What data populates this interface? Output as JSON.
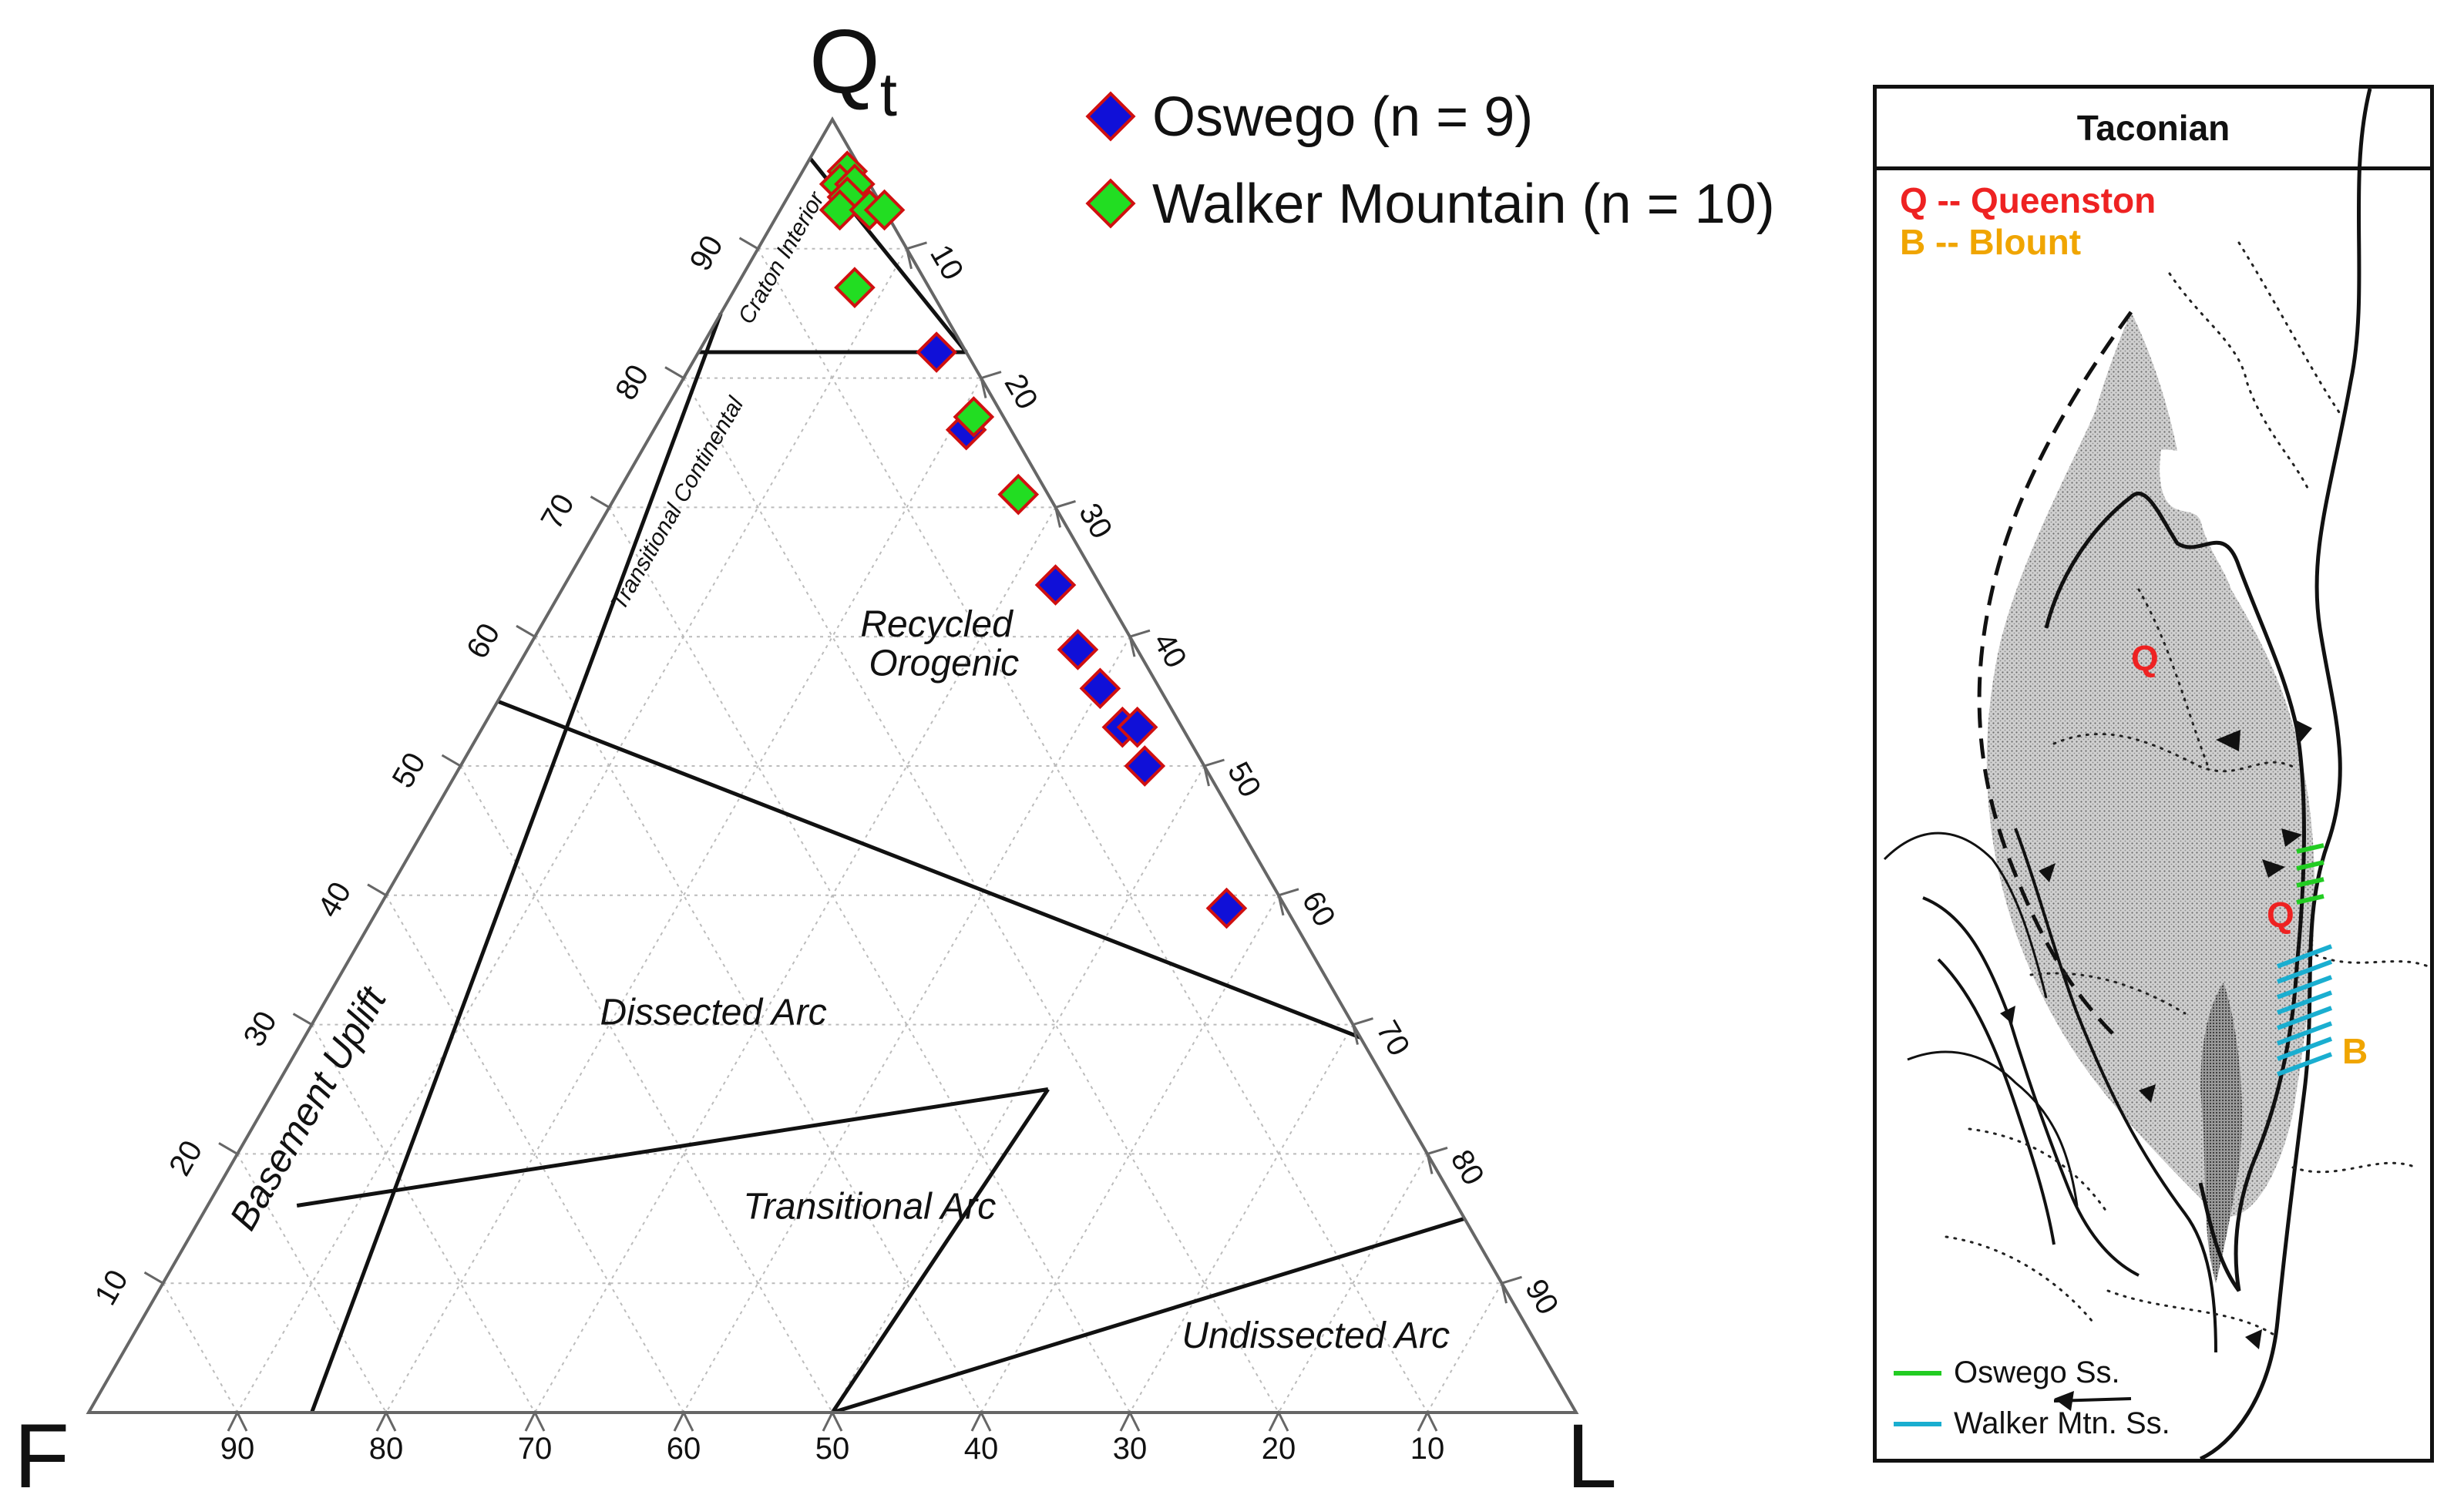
{
  "chart_data": {
    "type": "scatter",
    "subtype": "ternary",
    "vertices": {
      "top": "Q",
      "top_subscript": "t",
      "left": "F",
      "right": "L"
    },
    "top_axis_ticks": [
      90,
      80,
      70,
      60,
      50,
      40,
      30,
      20,
      10
    ],
    "right_axis_ticks": [
      10,
      20,
      30,
      40,
      50,
      60,
      70,
      80,
      90
    ],
    "bottom_axis_ticks": [
      90,
      80,
      70,
      60,
      50,
      40,
      30,
      20,
      10
    ],
    "regions": {
      "craton": "Craton Interior",
      "transitional_continental": "Transitional Continental",
      "basement": "Basement Uplift",
      "recycled_1": "Recycled",
      "recycled_2": "Orogenic",
      "dissected": "Dissected Arc",
      "transitional_arc": "Transitional Arc",
      "undissected": "Undissected Arc"
    },
    "series": [
      {
        "name": "Oswego (n = 9)",
        "color": "#1010d8",
        "edge": "#d01010",
        "points": [
          {
            "Q": 82,
            "F": 2,
            "L": 16
          },
          {
            "Q": 76,
            "F": 3,
            "L": 21
          },
          {
            "Q": 64,
            "F": 3,
            "L": 33
          },
          {
            "Q": 59,
            "F": 4,
            "L": 37
          },
          {
            "Q": 56,
            "F": 4,
            "L": 40
          },
          {
            "Q": 53,
            "F": 4,
            "L": 43
          },
          {
            "Q": 53,
            "F": 3,
            "L": 44
          },
          {
            "Q": 50,
            "F": 4,
            "L": 46
          },
          {
            "Q": 39,
            "F": 4,
            "L": 57
          }
        ]
      },
      {
        "name": "Walker Mountain (n = 10)",
        "color": "#22dd22",
        "edge": "#d01010",
        "points": [
          {
            "Q": 96,
            "F": 1,
            "L": 3
          },
          {
            "Q": 95,
            "F": 2,
            "L": 3
          },
          {
            "Q": 95,
            "F": 1,
            "L": 4
          },
          {
            "Q": 94,
            "F": 2,
            "L": 4
          },
          {
            "Q": 93,
            "F": 3,
            "L": 4
          },
          {
            "Q": 93,
            "F": 1,
            "L": 6
          },
          {
            "Q": 93,
            "F": 0,
            "L": 7
          },
          {
            "Q": 87,
            "F": 5,
            "L": 8
          },
          {
            "Q": 77,
            "F": 2,
            "L": 21
          },
          {
            "Q": 71,
            "F": 2,
            "L": 27
          }
        ]
      }
    ]
  },
  "legend": {
    "oswego": "Oswego (n = 9)",
    "walker": "Walker Mountain (n = 10)"
  },
  "map": {
    "title": "Taconian",
    "key_q": "Q -- Queenston",
    "key_b": "B -- Blount",
    "label_q": "Q",
    "label_b": "B",
    "legend_oswego": "Oswego Ss.",
    "legend_walker": "Walker Mtn. Ss.",
    "colors": {
      "queenston": "#ee2222",
      "blount": "#f0a500",
      "oswego": "#22cc22",
      "walker": "#1aaed0"
    }
  }
}
